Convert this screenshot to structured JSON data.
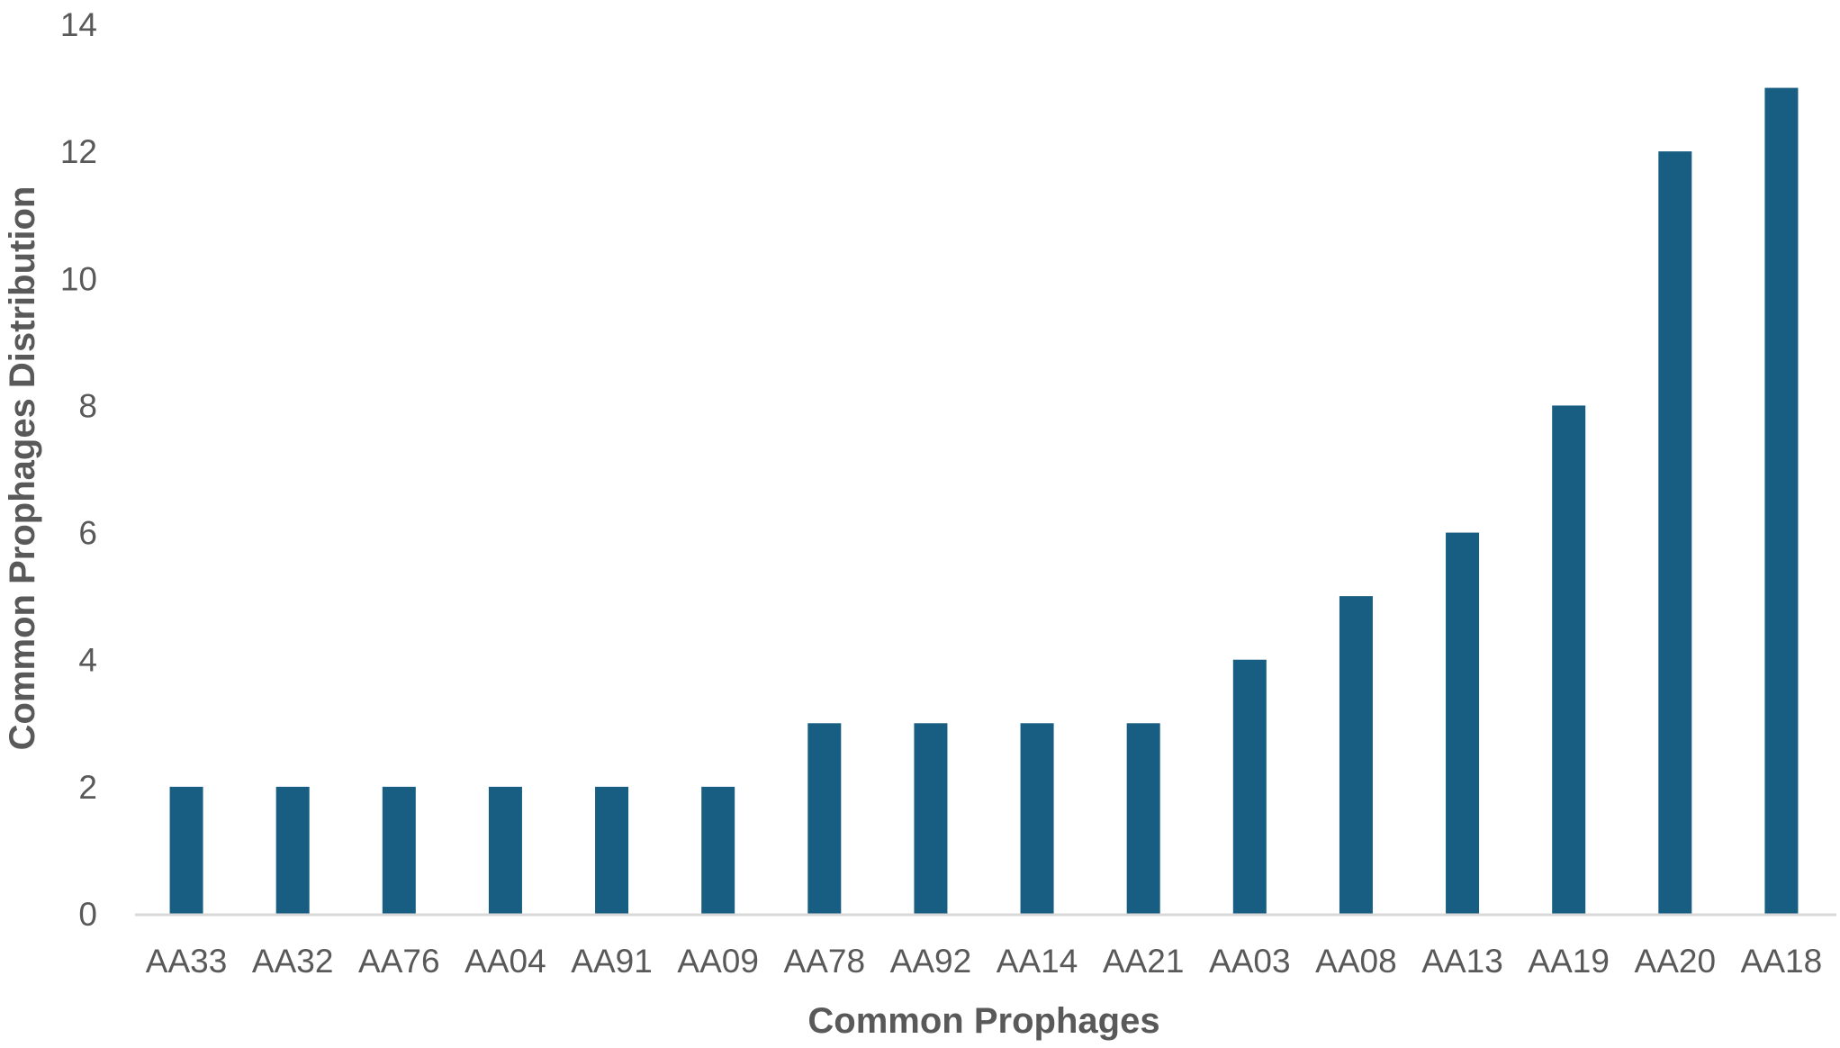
{
  "chart_data": {
    "type": "bar",
    "title": "",
    "xlabel": "Common Prophages",
    "ylabel": "Common Prophages Distribution",
    "categories": [
      "AA33",
      "AA32",
      "AA76",
      "AA04",
      "AA91",
      "AA09",
      "AA78",
      "AA92",
      "AA14",
      "AA21",
      "AA03",
      "AA08",
      "AA13",
      "AA19",
      "AA20",
      "AA18"
    ],
    "values": [
      2,
      2,
      2,
      2,
      2,
      2,
      3,
      3,
      3,
      3,
      4,
      5,
      6,
      8,
      12,
      13
    ],
    "ylim": [
      0,
      14
    ],
    "yticks": [
      0,
      2,
      4,
      6,
      8,
      10,
      12,
      14
    ],
    "grid": false,
    "legend": "none",
    "colors": {
      "bar": "#175E82",
      "axis": "#D9D9D9",
      "text": "#595959"
    }
  }
}
